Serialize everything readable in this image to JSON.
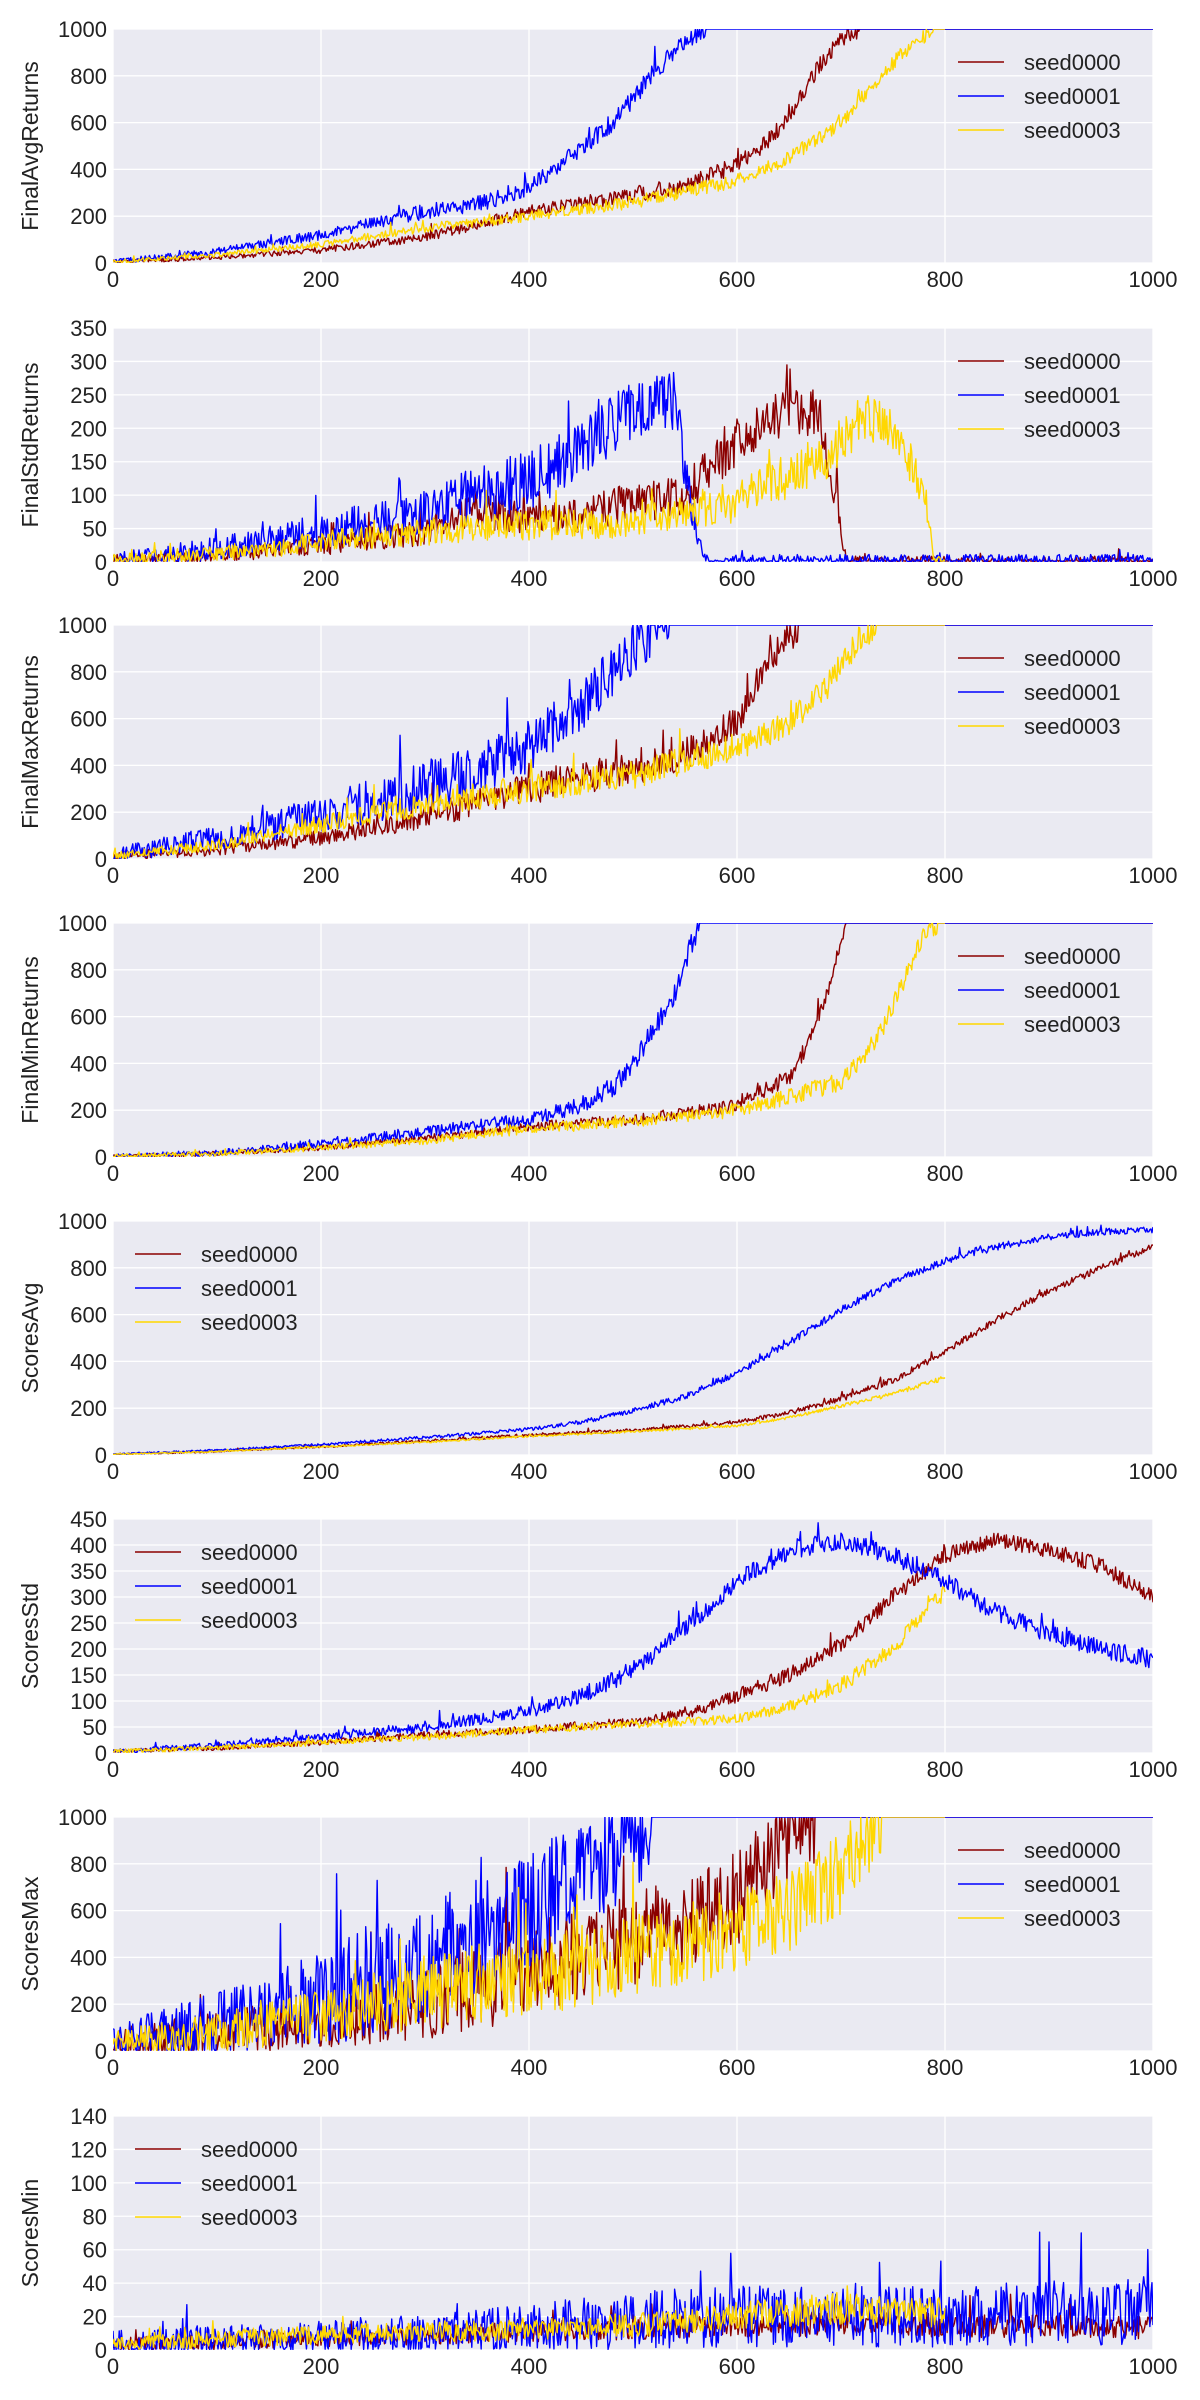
{
  "colors": {
    "seed0000": "#8b0000",
    "seed0001": "#0000ff",
    "seed0003": "#ffd700",
    "plot_background": "#eaeaf2",
    "grid": "#ffffff"
  },
  "chart_data": [
    {
      "type": "line",
      "ylabel": "FinalAvgReturns",
      "xlim": [
        0,
        1000
      ],
      "ylim": [
        0,
        1000
      ],
      "xticks": [
        0,
        200,
        400,
        600,
        800,
        1000
      ],
      "yticks": [
        0,
        200,
        400,
        600,
        800,
        1000
      ],
      "grid": true,
      "legend_position": "upper-right",
      "series": [
        {
          "name": "seed0000",
          "x": [
            0,
            100,
            200,
            300,
            400,
            450,
            500,
            550,
            600,
            620,
            640,
            660,
            680,
            700,
            720
          ],
          "y": [
            5,
            25,
            55,
            110,
            220,
            255,
            295,
            330,
            420,
            480,
            570,
            700,
            850,
            960,
            1000
          ],
          "x_end": 1000,
          "noise": 35
        },
        {
          "name": "seed0001",
          "x": [
            0,
            100,
            200,
            250,
            300,
            350,
            400,
            450,
            480,
            500,
            520,
            540,
            560,
            580
          ],
          "y": [
            5,
            50,
            120,
            170,
            220,
            250,
            320,
            490,
            600,
            700,
            820,
            900,
            980,
            1000
          ],
          "x_end": 1000,
          "noise": 40
        },
        {
          "name": "seed0003",
          "x": [
            0,
            100,
            200,
            300,
            400,
            500,
            600,
            650,
            700,
            730,
            760,
            790,
            800
          ],
          "y": [
            5,
            35,
            80,
            150,
            200,
            260,
            350,
            450,
            600,
            760,
            900,
            1000,
            1000
          ],
          "x_end": 800,
          "noise": 30
        }
      ]
    },
    {
      "type": "line",
      "ylabel": "FinalStdReturns",
      "xlim": [
        0,
        1000
      ],
      "ylim": [
        0,
        350
      ],
      "xticks": [
        0,
        200,
        400,
        600,
        800,
        1000
      ],
      "yticks": [
        0,
        50,
        100,
        150,
        200,
        250,
        300,
        350
      ],
      "grid": true,
      "legend_position": "upper-right",
      "series": [
        {
          "name": "seed0000",
          "x": [
            0,
            100,
            200,
            300,
            350,
            400,
            450,
            500,
            550,
            600,
            650,
            680,
            695,
            705,
            720,
            1000
          ],
          "y": [
            2,
            10,
            25,
            45,
            80,
            60,
            70,
            90,
            100,
            180,
            230,
            220,
            100,
            0,
            0,
            0
          ],
          "x_end": 1000,
          "noise": 35
        },
        {
          "name": "seed0001",
          "x": [
            0,
            100,
            200,
            300,
            350,
            400,
            450,
            500,
            540,
            555,
            570,
            1000
          ],
          "y": [
            2,
            20,
            45,
            75,
            100,
            120,
            170,
            230,
            240,
            80,
            0,
            0
          ],
          "x_end": 1000,
          "noise": 45
        },
        {
          "name": "seed0003",
          "x": [
            0,
            100,
            200,
            300,
            400,
            500,
            600,
            650,
            700,
            720,
            750,
            780,
            790,
            800
          ],
          "y": [
            2,
            12,
            30,
            45,
            55,
            60,
            90,
            130,
            170,
            220,
            200,
            100,
            0,
            0
          ],
          "x_end": 800,
          "noise": 35
        }
      ]
    },
    {
      "type": "line",
      "ylabel": "FinalMaxReturns",
      "xlim": [
        0,
        1000
      ],
      "ylim": [
        0,
        1000
      ],
      "xticks": [
        0,
        200,
        400,
        600,
        800,
        1000
      ],
      "yticks": [
        0,
        200,
        400,
        600,
        800,
        1000
      ],
      "grid": true,
      "legend_position": "upper-right",
      "series": [
        {
          "name": "seed0000",
          "x": [
            0,
            100,
            200,
            300,
            400,
            450,
            500,
            550,
            600,
            620,
            640,
            660,
            1000
          ],
          "y": [
            10,
            40,
            90,
            180,
            300,
            350,
            380,
            450,
            600,
            750,
            900,
            1000,
            1000
          ],
          "x_end": 1000,
          "noise": 70
        },
        {
          "name": "seed0001",
          "x": [
            0,
            100,
            200,
            300,
            350,
            400,
            450,
            480,
            500,
            520,
            540,
            1000
          ],
          "y": [
            15,
            90,
            190,
            310,
            380,
            480,
            650,
            800,
            900,
            980,
            1000,
            1000
          ],
          "x_end": 1000,
          "noise": 110
        },
        {
          "name": "seed0003",
          "x": [
            0,
            100,
            200,
            300,
            400,
            500,
            600,
            650,
            680,
            700,
            720,
            740,
            800
          ],
          "y": [
            15,
            60,
            150,
            230,
            300,
            360,
            480,
            580,
            700,
            820,
            950,
            1000,
            1000
          ],
          "x_end": 800,
          "noise": 60
        }
      ]
    },
    {
      "type": "line",
      "ylabel": "FinalMinReturns",
      "xlim": [
        0,
        1000
      ],
      "ylim": [
        0,
        1000
      ],
      "xticks": [
        0,
        200,
        400,
        600,
        800,
        1000
      ],
      "yticks": [
        0,
        200,
        400,
        600,
        800,
        1000
      ],
      "grid": true,
      "legend_position": "upper-right",
      "series": [
        {
          "name": "seed0000",
          "x": [
            0,
            100,
            200,
            300,
            400,
            500,
            600,
            650,
            670,
            690,
            705,
            720,
            1000
          ],
          "y": [
            2,
            15,
            40,
            80,
            130,
            160,
            220,
            340,
            500,
            750,
            1000,
            1000,
            1000
          ],
          "x_end": 1000,
          "noise": 35
        },
        {
          "name": "seed0001",
          "x": [
            0,
            100,
            200,
            300,
            400,
            450,
            480,
            500,
            520,
            540,
            555,
            565,
            1000
          ],
          "y": [
            2,
            18,
            55,
            110,
            160,
            220,
            300,
            400,
            550,
            700,
            900,
            1000,
            1000
          ],
          "x_end": 1000,
          "noise": 45
        },
        {
          "name": "seed0003",
          "x": [
            0,
            100,
            200,
            300,
            400,
            500,
            600,
            700,
            720,
            740,
            760,
            780,
            800
          ],
          "y": [
            2,
            15,
            40,
            70,
            120,
            150,
            200,
            320,
            420,
            550,
            750,
            950,
            1000
          ],
          "x_end": 800,
          "noise": 40
        }
      ]
    },
    {
      "type": "line",
      "ylabel": "ScoresAvg",
      "xlim": [
        0,
        1000
      ],
      "ylim": [
        0,
        1000
      ],
      "xticks": [
        0,
        200,
        400,
        600,
        800,
        1000
      ],
      "yticks": [
        0,
        200,
        400,
        600,
        800,
        1000
      ],
      "grid": true,
      "legend_position": "upper-left",
      "series": [
        {
          "name": "seed0000",
          "x": [
            0,
            100,
            200,
            300,
            400,
            500,
            600,
            650,
            700,
            750,
            800,
            850,
            900,
            950,
            1000
          ],
          "y": [
            3,
            15,
            35,
            60,
            85,
            105,
            140,
            180,
            240,
            320,
            440,
            580,
            700,
            800,
            890
          ],
          "x_end": 1000,
          "noise": 15
        },
        {
          "name": "seed0001",
          "x": [
            0,
            100,
            200,
            300,
            400,
            450,
            500,
            550,
            600,
            650,
            700,
            750,
            800,
            850,
            900,
            950,
            1000
          ],
          "y": [
            3,
            20,
            45,
            75,
            110,
            140,
            190,
            250,
            350,
            480,
            620,
            740,
            830,
            890,
            930,
            955,
            965
          ],
          "x_end": 1000,
          "noise": 15
        },
        {
          "name": "seed0003",
          "x": [
            0,
            100,
            200,
            300,
            400,
            500,
            600,
            650,
            700,
            750,
            800
          ],
          "y": [
            3,
            15,
            35,
            55,
            80,
            100,
            125,
            160,
            210,
            260,
            330
          ],
          "x_end": 800,
          "noise": 10
        }
      ]
    },
    {
      "type": "line",
      "ylabel": "ScoresStd",
      "xlim": [
        0,
        1000
      ],
      "ylim": [
        0,
        450
      ],
      "xticks": [
        0,
        200,
        400,
        600,
        800,
        1000
      ],
      "yticks": [
        0,
        50,
        100,
        150,
        200,
        250,
        300,
        350,
        400,
        450
      ],
      "grid": true,
      "legend_position": "upper-left",
      "series": [
        {
          "name": "seed0000",
          "x": [
            0,
            100,
            200,
            300,
            400,
            500,
            550,
            600,
            650,
            700,
            750,
            800,
            850,
            900,
            950,
            1000
          ],
          "y": [
            3,
            10,
            20,
            35,
            45,
            60,
            75,
            110,
            150,
            210,
            300,
            380,
            410,
            390,
            360,
            300
          ],
          "x_end": 1000,
          "noise": 15
        },
        {
          "name": "seed0001",
          "x": [
            0,
            100,
            200,
            300,
            400,
            450,
            500,
            550,
            600,
            650,
            700,
            750,
            800,
            850,
            900,
            950,
            1000
          ],
          "y": [
            3,
            15,
            30,
            50,
            80,
            110,
            160,
            240,
            330,
            390,
            410,
            380,
            330,
            270,
            230,
            200,
            180
          ],
          "x_end": 1000,
          "noise": 18
        },
        {
          "name": "seed0003",
          "x": [
            0,
            100,
            200,
            300,
            400,
            500,
            600,
            650,
            700,
            750,
            780,
            800
          ],
          "y": [
            3,
            10,
            20,
            30,
            45,
            55,
            65,
            90,
            130,
            200,
            270,
            310
          ],
          "x_end": 800,
          "noise": 15
        }
      ]
    },
    {
      "type": "line",
      "ylabel": "ScoresMax",
      "xlim": [
        0,
        1000
      ],
      "ylim": [
        0,
        1000
      ],
      "xticks": [
        0,
        200,
        400,
        600,
        800,
        1000
      ],
      "yticks": [
        0,
        200,
        400,
        600,
        800,
        1000
      ],
      "grid": true,
      "legend_position": "upper-right",
      "series": [
        {
          "name": "seed0000",
          "x": [
            0,
            100,
            200,
            300,
            350,
            400,
            450,
            500,
            550,
            600,
            620,
            640,
            660,
            680,
            700,
            720,
            1000
          ],
          "y": [
            30,
            80,
            120,
            200,
            280,
            350,
            420,
            480,
            550,
            650,
            750,
            850,
            950,
            1000,
            1000,
            1000,
            1000
          ],
          "x_end": 1000,
          "noise": 200
        },
        {
          "name": "seed0001",
          "x": [
            0,
            100,
            200,
            300,
            350,
            400,
            450,
            480,
            500,
            520,
            540,
            1000
          ],
          "y": [
            30,
            120,
            220,
            380,
            500,
            600,
            750,
            850,
            950,
            1000,
            1000,
            1000
          ],
          "x_end": 1000,
          "noise": 250
        },
        {
          "name": "seed0003",
          "x": [
            0,
            100,
            200,
            300,
            400,
            500,
            550,
            600,
            650,
            700,
            720,
            740,
            800
          ],
          "y": [
            30,
            80,
            150,
            250,
            320,
            400,
            450,
            520,
            600,
            750,
            900,
            1000,
            1000
          ],
          "x_end": 800,
          "noise": 180
        }
      ]
    },
    {
      "type": "line",
      "ylabel": "ScoresMin",
      "xlim": [
        0,
        1000
      ],
      "ylim": [
        0,
        140
      ],
      "xticks": [
        0,
        200,
        400,
        600,
        800,
        1000
      ],
      "yticks": [
        0,
        20,
        40,
        60,
        80,
        100,
        120,
        140
      ],
      "grid": true,
      "legend_position": "upper-left",
      "series": [
        {
          "name": "seed0000",
          "x": [
            0,
            100,
            200,
            300,
            400,
            500,
            600,
            700,
            800,
            900,
            1000
          ],
          "y": [
            3,
            5,
            7,
            9,
            11,
            13,
            15,
            16,
            15,
            14,
            13
          ],
          "x_end": 1000,
          "noise": 14
        },
        {
          "name": "seed0001",
          "x": [
            0,
            100,
            200,
            300,
            400,
            500,
            600,
            700,
            800,
            900,
            1000
          ],
          "y": [
            3,
            5,
            7,
            9,
            13,
            18,
            20,
            20,
            20,
            22,
            22
          ],
          "x_end": 1000,
          "noise": 30
        },
        {
          "name": "seed0003",
          "x": [
            0,
            100,
            200,
            300,
            400,
            500,
            600,
            700,
            800
          ],
          "y": [
            3,
            7,
            9,
            11,
            12,
            15,
            20,
            25,
            22
          ],
          "x_end": 800,
          "noise": 14
        }
      ]
    }
  ]
}
